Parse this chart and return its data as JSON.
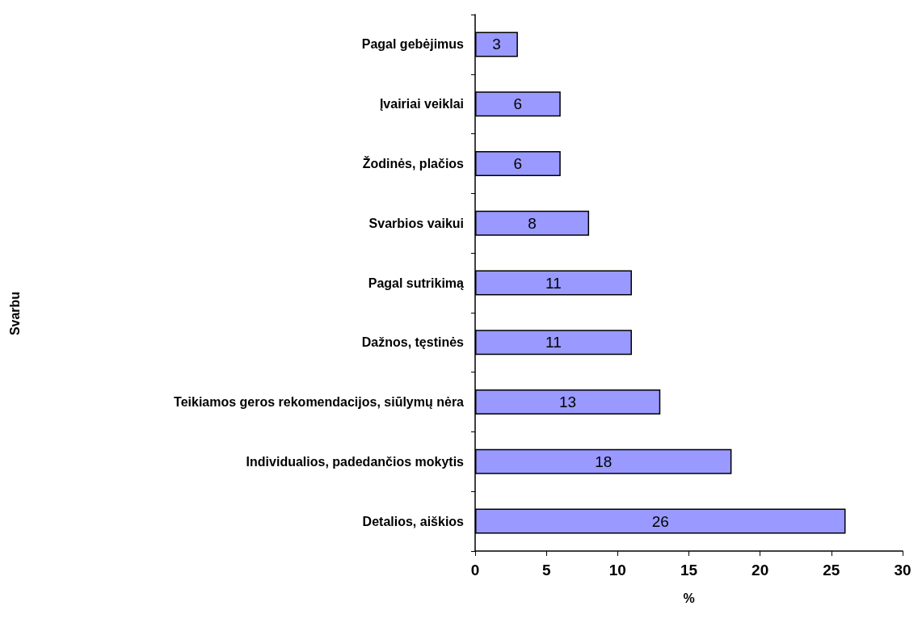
{
  "chart_data": {
    "type": "bar",
    "orientation": "horizontal",
    "xlabel": "%",
    "annotations": [
      "Svarbu"
    ],
    "categories": [
      "Pagal gebėjimus",
      "Įvairiai veiklai",
      "Žodinės, plačios",
      "Svarbios vaikui",
      "Pagal sutrikimą",
      "Dažnos, tęstinės",
      "Teikiamos geros rekomendacijos, siūlymų nėra",
      "Individualios, padedančios mokytis",
      "Detalios, aiškios"
    ],
    "values": [
      3,
      6,
      6,
      8,
      11,
      11,
      13,
      18,
      26
    ],
    "color": "#9999ff",
    "xlim": [
      0,
      30
    ],
    "xticks": [
      0,
      5,
      10,
      15,
      20,
      25,
      30
    ],
    "data_labels": true,
    "grid": false
  }
}
